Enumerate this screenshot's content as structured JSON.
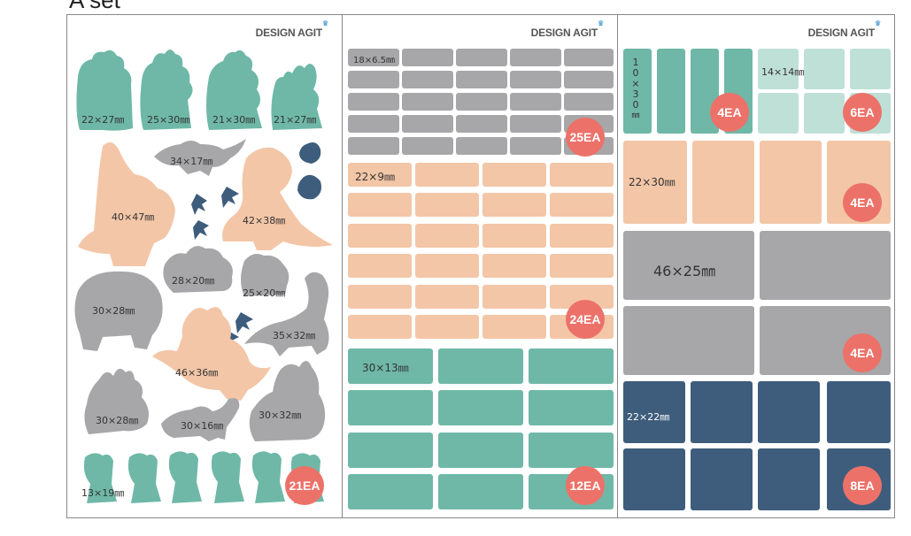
{
  "heading": "A set",
  "brand": "DESIGN AGIT",
  "brand_crown": "♛",
  "colors": {
    "teal": "#6fb8a7",
    "peach": "#f3c6a7",
    "grey": "#a7a6a8",
    "navy": "#3e5d7c",
    "mint": "#bfe0d6",
    "badge": "#ec7269"
  },
  "sheet1": {
    "top_labels": [
      "22×27㎜",
      "25×30㎜",
      "21×30㎜",
      "21×27㎜"
    ],
    "dino_labels": [
      "34×17㎜",
      "40×47㎜",
      "42×38㎜",
      "28×20㎜",
      "25×20㎜",
      "30×28㎜",
      "35×32㎜",
      "46×36㎜",
      "30×28㎜",
      "30×16㎜",
      "30×32㎜"
    ],
    "bottom_label": "13×19㎜",
    "badge": "21EA"
  },
  "sheet2": {
    "section1": {
      "label": "18×6.5㎜",
      "badge": "25EA"
    },
    "section2": {
      "label": "22×9㎜",
      "badge": "24EA"
    },
    "section3": {
      "label": "30×13㎜",
      "badge": "12EA"
    }
  },
  "sheet3": {
    "tall_label": [
      "1",
      "0",
      "×",
      "3",
      "0",
      "㎜"
    ],
    "tall_badge": "4EA",
    "small_label": "14×14㎜",
    "small_badge": "6EA",
    "peach_label": "22×30㎜",
    "peach_badge": "4EA",
    "grey_label": "46×25㎜",
    "grey_badge": "4EA",
    "navy_label": "22×22㎜",
    "navy_badge": "8EA"
  }
}
